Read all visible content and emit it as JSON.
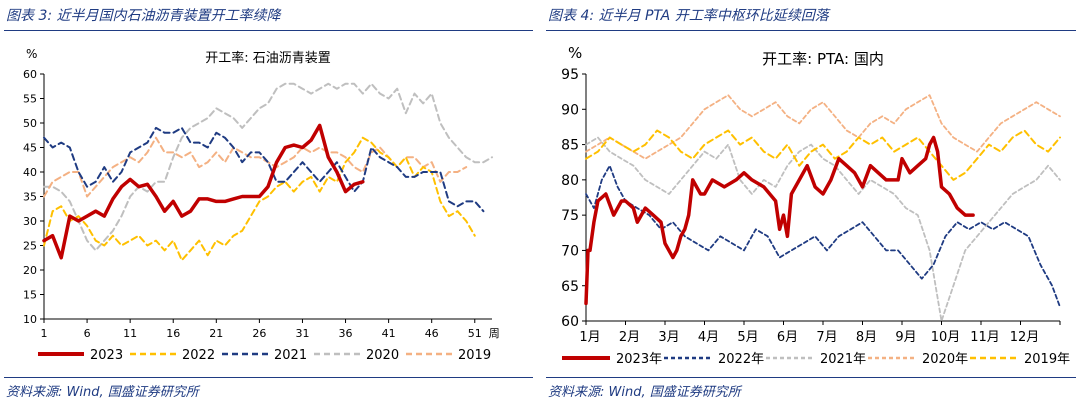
{
  "left_panel": {
    "figure_title": "图表 3:  近半月国内石油沥青装置开工率续降",
    "source": "资料来源:  Wind,  国盛证券研究所",
    "chart_data": {
      "type": "line",
      "title": "开工率:  石油沥青装置",
      "ylabel": "%",
      "xlabel_suffix": "周",
      "ylim": [
        10,
        60
      ],
      "yticks": [
        10,
        15,
        20,
        25,
        30,
        35,
        40,
        45,
        50,
        55,
        60
      ],
      "xlim": [
        1,
        53
      ],
      "xticks": [
        1,
        6,
        11,
        16,
        21,
        26,
        31,
        36,
        41,
        46,
        51
      ],
      "grid": false,
      "legend_position": "bottom",
      "series": [
        {
          "name": "2023",
          "color": "#c00000",
          "dash": "solid",
          "width": 3.5,
          "x": [
            1,
            2,
            3,
            4,
            5,
            6,
            7,
            8,
            9,
            10,
            11,
            12,
            13,
            14,
            15,
            16,
            17,
            18,
            19,
            20,
            21,
            22,
            23,
            24,
            25,
            26,
            27,
            28,
            29,
            30,
            31,
            32,
            33,
            34,
            35,
            36,
            37,
            38
          ],
          "values": [
            26,
            27,
            22.5,
            31,
            30,
            31,
            32,
            31,
            34.5,
            37,
            38.5,
            37,
            37.5,
            35,
            32,
            34,
            31,
            32,
            34.5,
            34.5,
            34,
            34,
            34.5,
            35,
            35,
            35,
            37,
            42,
            45,
            45.5,
            45,
            46.5,
            49.5,
            43,
            40,
            36,
            37.5,
            38
          ]
        },
        {
          "name": "2022",
          "color": "#ffc000",
          "dash": "6 4",
          "width": 2,
          "x": [
            1,
            2,
            3,
            4,
            5,
            6,
            7,
            8,
            9,
            10,
            11,
            12,
            13,
            14,
            15,
            16,
            17,
            18,
            19,
            20,
            21,
            22,
            23,
            24,
            25,
            26,
            27,
            28,
            29,
            30,
            31,
            32,
            33,
            34,
            35,
            36,
            37,
            38,
            39,
            40,
            41,
            42,
            43,
            44,
            45,
            46,
            47,
            48,
            49,
            50,
            51
          ],
          "values": [
            25,
            32,
            33,
            30,
            31,
            29,
            26,
            25,
            27,
            25,
            26,
            27,
            25,
            26,
            24,
            26,
            22,
            24,
            26,
            23,
            26,
            25,
            27,
            28,
            31,
            34,
            35,
            37,
            38,
            36,
            38,
            39,
            36,
            39,
            38,
            42,
            44,
            47,
            46,
            44,
            43,
            41,
            43,
            39,
            41,
            40,
            34,
            31,
            32,
            30,
            27
          ]
        },
        {
          "name": "2021",
          "color": "#1f3b82",
          "dash": "6 4",
          "width": 2,
          "x": [
            1,
            2,
            3,
            4,
            5,
            6,
            7,
            8,
            9,
            10,
            11,
            12,
            13,
            14,
            15,
            16,
            17,
            18,
            19,
            20,
            21,
            22,
            23,
            24,
            25,
            26,
            27,
            28,
            29,
            30,
            31,
            32,
            33,
            34,
            35,
            36,
            37,
            38,
            39,
            40,
            41,
            42,
            43,
            44,
            45,
            46,
            47,
            48,
            49,
            50,
            51,
            52
          ],
          "values": [
            47,
            45,
            46,
            45,
            40,
            37,
            38,
            41,
            38,
            40,
            44,
            45,
            46,
            49,
            48,
            48,
            49,
            46,
            46,
            45,
            48,
            47,
            45,
            42,
            44,
            44,
            42,
            38,
            38,
            40,
            42,
            40,
            38,
            40,
            42,
            39,
            36,
            38,
            45,
            43,
            42,
            41,
            39,
            39,
            40,
            40,
            40,
            34,
            33,
            34,
            34,
            32
          ]
        },
        {
          "name": "2020",
          "color": "#bfbfbf",
          "dash": "6 4",
          "width": 2,
          "x": [
            1,
            2,
            3,
            4,
            5,
            6,
            7,
            8,
            9,
            10,
            11,
            12,
            13,
            14,
            15,
            16,
            17,
            18,
            19,
            20,
            21,
            22,
            23,
            24,
            25,
            26,
            27,
            28,
            29,
            30,
            31,
            32,
            33,
            34,
            35,
            36,
            37,
            38,
            39,
            40,
            41,
            42,
            43,
            44,
            45,
            46,
            47,
            48,
            49,
            50,
            51,
            52,
            53
          ],
          "values": [
            37,
            37,
            36,
            34,
            30,
            26,
            24,
            26,
            28,
            31,
            35,
            37,
            36,
            38,
            38,
            43,
            47,
            49,
            50,
            51,
            53,
            52,
            51,
            49,
            51,
            53,
            54,
            57,
            58,
            58,
            57,
            56,
            57,
            58,
            57,
            58,
            58,
            56,
            58,
            56,
            55,
            57,
            52,
            56,
            54,
            56,
            50,
            47,
            45,
            43,
            42,
            42,
            43
          ]
        },
        {
          "name": "2019",
          "color": "#f4b183",
          "dash": "6 4",
          "width": 2,
          "x": [
            1,
            2,
            3,
            4,
            5,
            6,
            7,
            8,
            9,
            10,
            11,
            12,
            13,
            14,
            15,
            16,
            17,
            18,
            19,
            20,
            21,
            22,
            23,
            24,
            25,
            26,
            27,
            28,
            29,
            30,
            31,
            32,
            33,
            34,
            35,
            36,
            37,
            38,
            39,
            40,
            41,
            42,
            43,
            44,
            45,
            46,
            47,
            48,
            49,
            50
          ],
          "values": [
            35,
            38,
            39,
            40,
            40,
            35,
            37,
            39,
            41,
            42,
            43,
            42,
            44,
            47,
            44,
            44,
            43,
            44,
            41,
            42,
            44,
            42,
            45,
            44,
            43,
            43,
            42,
            41,
            42,
            43,
            45,
            44,
            45,
            44,
            44,
            43,
            41,
            40,
            44,
            45,
            43,
            41,
            43,
            43,
            41,
            42,
            38,
            40,
            40,
            41
          ]
        }
      ]
    }
  },
  "right_panel": {
    "figure_title": "图表 4:  近半月 PTA 开工率中枢环比延续回落",
    "source": "资料来源:  Wind,  国盛证券研究所",
    "chart_data": {
      "type": "line",
      "title": "开工率:  PTA:  国内",
      "ylabel": "%",
      "ylim": [
        60,
        95
      ],
      "yticks": [
        60,
        65,
        70,
        75,
        80,
        85,
        90,
        95
      ],
      "xlim": [
        1,
        13
      ],
      "xticks": [
        "1月",
        "2月",
        "3月",
        "4月",
        "5月",
        "6月",
        "7月",
        "8月",
        "9月",
        "10月",
        "11月",
        "12月"
      ],
      "grid": false,
      "legend_position": "bottom",
      "series": [
        {
          "name": "2023年",
          "color": "#c00000",
          "dash": "solid",
          "width": 3.5,
          "x": [
            1.0,
            1.05,
            1.1,
            1.2,
            1.3,
            1.5,
            1.7,
            1.9,
            2.0,
            2.2,
            2.3,
            2.5,
            2.7,
            2.9,
            3.0,
            3.2,
            3.3,
            3.4,
            3.5,
            3.6,
            3.7,
            3.8,
            3.9,
            4.0,
            4.2,
            4.5,
            4.8,
            5.0,
            5.2,
            5.5,
            5.8,
            5.9,
            6.0,
            6.1,
            6.2,
            6.4,
            6.6,
            6.8,
            7.0,
            7.2,
            7.4,
            7.6,
            7.8,
            8.0,
            8.2,
            8.4,
            8.6,
            8.9,
            9.0,
            9.2,
            9.4,
            9.6,
            9.7,
            9.8,
            9.9,
            10.0,
            10.2,
            10.4,
            10.6,
            10.8
          ],
          "values": [
            62.5,
            70,
            70,
            74,
            77,
            78,
            75,
            77,
            77,
            76,
            74,
            76,
            75,
            74,
            71,
            69,
            70,
            72,
            73,
            75,
            80,
            79,
            78,
            78,
            80,
            79,
            80,
            81,
            80,
            79,
            77,
            73,
            75,
            72,
            78,
            80,
            82,
            79,
            78,
            80,
            83,
            82,
            81,
            79,
            82,
            81,
            80,
            80,
            83,
            81,
            82,
            83,
            85,
            86,
            84,
            79,
            78,
            76,
            75,
            75
          ]
        },
        {
          "name": "2022年",
          "color": "#1f3b82",
          "dash": "4 3",
          "width": 1.8,
          "x": [
            1.0,
            1.2,
            1.4,
            1.6,
            1.8,
            2.0,
            2.3,
            2.6,
            2.9,
            3.2,
            3.5,
            3.8,
            4.1,
            4.4,
            4.7,
            5.0,
            5.3,
            5.6,
            5.9,
            6.2,
            6.5,
            6.8,
            7.1,
            7.4,
            7.7,
            8.0,
            8.3,
            8.6,
            8.9,
            9.2,
            9.5,
            9.8,
            10.1,
            10.4,
            10.7,
            11.0,
            11.3,
            11.6,
            11.9,
            12.2,
            12.5,
            12.8,
            13.0
          ],
          "values": [
            78,
            76,
            80,
            82,
            79,
            77,
            76,
            75,
            73,
            74,
            72,
            71,
            70,
            72,
            71,
            70,
            73,
            72,
            69,
            70,
            71,
            72,
            70,
            72,
            73,
            74,
            72,
            70,
            70,
            68,
            66,
            68,
            72,
            74,
            73,
            74,
            73,
            74,
            73,
            72,
            68,
            65,
            62
          ]
        },
        {
          "name": "2021年",
          "color": "#bfbfbf",
          "dash": "4 3",
          "width": 1.8,
          "x": [
            1.0,
            1.3,
            1.6,
            1.9,
            2.2,
            2.5,
            2.8,
            3.1,
            3.4,
            3.7,
            4.0,
            4.3,
            4.6,
            4.9,
            5.2,
            5.5,
            5.8,
            6.1,
            6.4,
            6.7,
            7.0,
            7.3,
            7.6,
            7.9,
            8.2,
            8.5,
            8.8,
            9.1,
            9.4,
            9.7,
            10.0,
            10.3,
            10.6,
            10.9,
            11.2,
            11.5,
            11.8,
            12.1,
            12.4,
            12.7,
            13.0
          ],
          "values": [
            85,
            86,
            84,
            83,
            82,
            80,
            79,
            78,
            80,
            82,
            84,
            83,
            85,
            80,
            78,
            80,
            79,
            82,
            84,
            85,
            83,
            82,
            80,
            78,
            80,
            79,
            78,
            76,
            75,
            70,
            60,
            65,
            70,
            72,
            74,
            76,
            78,
            79,
            80,
            82,
            80
          ]
        },
        {
          "name": "2020年",
          "color": "#f4b183",
          "dash": "4 3",
          "width": 1.8,
          "x": [
            1.0,
            1.3,
            1.6,
            1.9,
            2.2,
            2.5,
            2.8,
            3.1,
            3.4,
            3.7,
            4.0,
            4.3,
            4.6,
            4.9,
            5.2,
            5.5,
            5.8,
            6.1,
            6.4,
            6.7,
            7.0,
            7.3,
            7.6,
            7.9,
            8.2,
            8.5,
            8.8,
            9.1,
            9.4,
            9.7,
            10.0,
            10.3,
            10.6,
            10.9,
            11.2,
            11.5,
            11.8,
            12.1,
            12.4,
            12.7,
            13.0
          ],
          "values": [
            84,
            85,
            86,
            85,
            84,
            83,
            84,
            85,
            86,
            88,
            90,
            91,
            92,
            90,
            89,
            90,
            91,
            89,
            88,
            90,
            91,
            89,
            87,
            86,
            88,
            89,
            88,
            90,
            91,
            92,
            88,
            86,
            85,
            84,
            86,
            88,
            89,
            90,
            91,
            90,
            89
          ]
        },
        {
          "name": "2019年",
          "color": "#ffc000",
          "dash": "6 4",
          "width": 2,
          "x": [
            1.0,
            1.3,
            1.6,
            1.9,
            2.2,
            2.5,
            2.8,
            3.1,
            3.4,
            3.7,
            4.0,
            4.3,
            4.6,
            4.9,
            5.2,
            5.5,
            5.8,
            6.1,
            6.4,
            6.7,
            7.0,
            7.3,
            7.6,
            7.9,
            8.2,
            8.5,
            8.8,
            9.1,
            9.4,
            9.7,
            10.0,
            10.3,
            10.6,
            10.9,
            11.2,
            11.5,
            11.8,
            12.1,
            12.4,
            12.7,
            13.0
          ],
          "values": [
            83,
            84,
            86,
            85,
            84,
            85,
            87,
            86,
            84,
            83,
            85,
            86,
            87,
            85,
            86,
            84,
            83,
            85,
            82,
            84,
            85,
            83,
            84,
            86,
            85,
            86,
            84,
            85,
            86,
            84,
            82,
            80,
            81,
            83,
            85,
            84,
            86,
            87,
            85,
            84,
            86
          ]
        }
      ]
    }
  }
}
